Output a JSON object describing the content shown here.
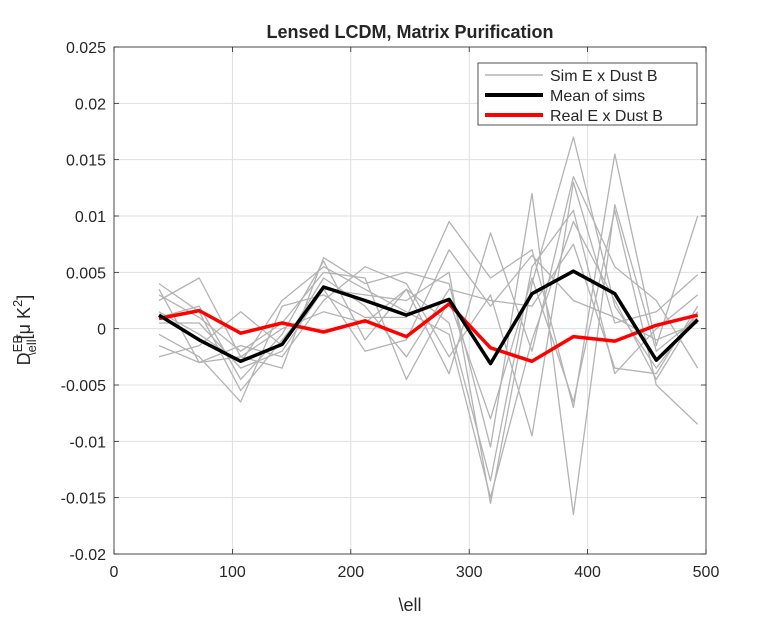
{
  "chart_data": {
    "type": "line",
    "title": "Lensed LCDM, Matrix Purification",
    "xlabel": "\\ell",
    "ylabel": {
      "base": "D",
      "sup": "EB",
      "sub": "\\ell",
      "units_open": "[",
      "mu": "μ",
      "k": " K",
      "exp": "2",
      "units_close": "]"
    },
    "xlim": [
      0,
      500
    ],
    "ylim": [
      -0.02,
      0.025
    ],
    "xticks": [
      0,
      100,
      200,
      300,
      400,
      500
    ],
    "xtick_labels": [
      "0",
      "100",
      "200",
      "300",
      "400",
      "500"
    ],
    "yticks": [
      -0.02,
      -0.015,
      -0.01,
      -0.005,
      0,
      0.005,
      0.01,
      0.015,
      0.02,
      0.025
    ],
    "ytick_labels": [
      "-0.02",
      "-0.015",
      "-0.01",
      "-0.005",
      "0",
      "0.005",
      "0.01",
      "0.015",
      "0.02",
      "0.025"
    ],
    "grid": true,
    "legend_position": "top-right",
    "x": [
      38,
      72,
      107,
      142,
      177,
      212,
      247,
      283,
      318,
      353,
      388,
      423,
      458,
      493
    ],
    "legend": [
      {
        "label": "Sim E x Dust B",
        "color": "#b3b3b3"
      },
      {
        "label": "Mean of sims",
        "color": "#000000"
      },
      {
        "label": "Real E x Dust B",
        "color": "#ff0000"
      }
    ],
    "sims": [
      [
        0.004,
        0.0015,
        -0.0055,
        -0.001,
        0.0035,
        0.003,
        0.0025,
        0.005,
        -0.0155,
        0.004,
        0.017,
        0.002,
        -0.0035,
        0.0015
      ],
      [
        0.0025,
        0.0045,
        -0.0025,
        -0.0035,
        0.0063,
        0.004,
        0.005,
        0.004,
        -0.0105,
        0.012,
        -0.0165,
        0.011,
        -0.002,
        0.001
      ],
      [
        -0.0005,
        -0.0025,
        -0.0065,
        0.002,
        0.003,
        0.001,
        0.001,
        0.0095,
        0.0045,
        0.007,
        -0.007,
        0.0155,
        -0.0015,
        0.01
      ],
      [
        0.003,
        0.001,
        -0.002,
        0.0005,
        0.005,
        0.0045,
        -0.0045,
        0.0025,
        -0.008,
        0.0045,
        -0.0065,
        0.0105,
        -0.005,
        -0.0085
      ],
      [
        -0.0015,
        -0.003,
        -0.0015,
        -0.0025,
        0.0025,
        0.0055,
        0.004,
        -0.0025,
        0.003,
        -0.0095,
        0.013,
        0.0005,
        0.0015,
        0.0048
      ],
      [
        0.001,
        0.002,
        -0.0045,
        -0.0005,
        0.006,
        -0.001,
        0.0035,
        0.0005,
        -0.0135,
        0.0055,
        0.0105,
        -0.004,
        0.0,
        0.003
      ],
      [
        -0.0025,
        -0.0015,
        0.0015,
        -0.0015,
        0.0045,
        0.002,
        -0.0025,
        0.0035,
        0.0025,
        0.002,
        0.0075,
        -0.0035,
        -0.004,
        0.002
      ],
      [
        0.0035,
        -0.003,
        -0.0025,
        0.0,
        0.0015,
        0.0005,
        0.0035,
        -0.004,
        0.0085,
        -0.002,
        0.0135,
        0.0055,
        0.0025,
        -0.0035
      ],
      [
        0.0005,
        0.0005,
        -0.0035,
        -0.002,
        0.0035,
        -0.002,
        -0.001,
        0.007,
        0.002,
        0.0065,
        0.0025,
        0.001,
        -0.001,
        0.0005
      ],
      [
        0.0015,
        -0.0005,
        -0.003,
        0.0025,
        0.0055,
        0.0035,
        0.0015,
        -0.0005,
        -0.015,
        -0.001,
        0.0095,
        0.0025,
        -0.0045,
        0.0015
      ]
    ],
    "mean": [
      0.0012,
      -0.001,
      -0.0029,
      -0.0014,
      0.0037,
      0.0025,
      0.0012,
      0.0026,
      -0.0031,
      0.0031,
      0.0051,
      0.0031,
      -0.0028,
      0.0008
    ],
    "real": [
      0.0009,
      0.0016,
      -0.0004,
      0.0005,
      -0.0003,
      0.0007,
      -0.0007,
      0.0022,
      -0.0017,
      -0.0029,
      -0.0007,
      -0.0011,
      0.0003,
      0.0012
    ]
  }
}
